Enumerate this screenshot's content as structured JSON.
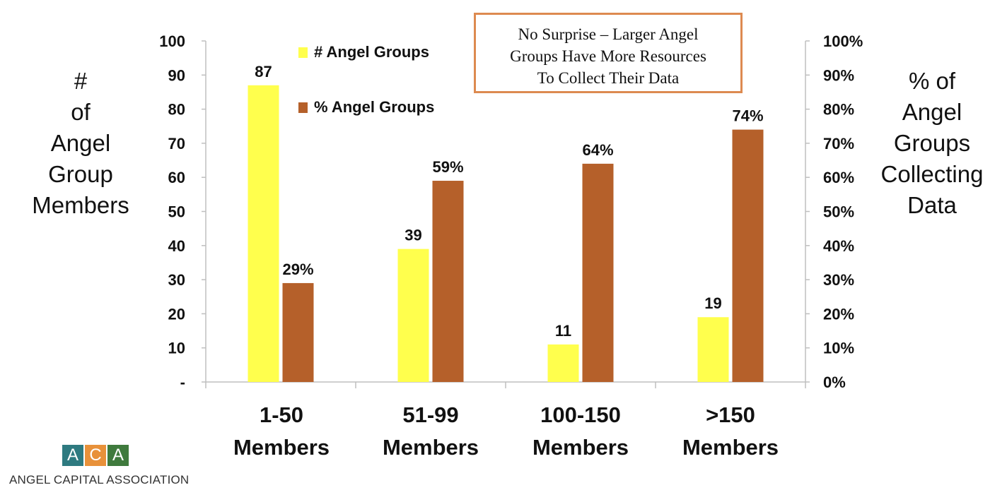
{
  "chart_data": {
    "type": "bar",
    "categories": [
      [
        "1-50",
        "Members"
      ],
      [
        "51-99",
        "Members"
      ],
      [
        "100-150",
        "Members"
      ],
      [
        ">150",
        "Members"
      ]
    ],
    "series": [
      {
        "name": "# Angel Groups",
        "axis": "left",
        "color": "#ffff4d",
        "values": [
          87,
          39,
          11,
          19
        ],
        "data_labels": [
          "87",
          "39",
          "11",
          "19"
        ]
      },
      {
        "name": "% Angel Groups",
        "axis": "right",
        "color": "#b5602a",
        "values": [
          0.29,
          0.59,
          0.64,
          0.74
        ],
        "data_labels": [
          "29%",
          "59%",
          "64%",
          "74%"
        ]
      }
    ],
    "ylabel_left": [
      "#",
      "of",
      "Angel",
      "Group",
      "Members"
    ],
    "ylabel_right": [
      "% of",
      "Angel",
      "Groups",
      "Collecting",
      "Data"
    ],
    "ylim_left": [
      0,
      100
    ],
    "ylim_right": [
      0,
      1
    ],
    "yticks_left": [
      "-",
      "10",
      "20",
      "30",
      "40",
      "50",
      "60",
      "70",
      "80",
      "90",
      "100"
    ],
    "yticks_right": [
      "0%",
      "10%",
      "20%",
      "30%",
      "40%",
      "50%",
      "60%",
      "70%",
      "80%",
      "90%",
      "100%"
    ],
    "grid": false,
    "legend_placement": "top-left"
  },
  "callout": {
    "lines": [
      "No Surprise – Larger Angel",
      "Groups Have More Resources",
      "To Collect Their Data"
    ],
    "border_color": "#dd8a50"
  },
  "logo": {
    "letters": [
      "A",
      "C",
      "A"
    ],
    "tile_colors": [
      "#2e7a80",
      "#e8913a",
      "#3f7a3d"
    ],
    "name": "ANGEL CAPITAL ASSOCIATION"
  }
}
